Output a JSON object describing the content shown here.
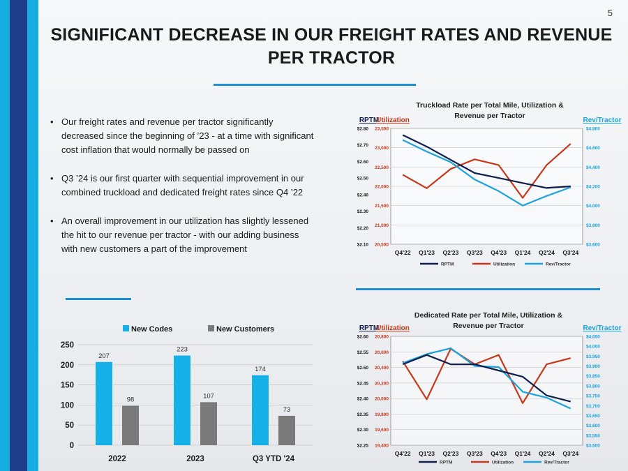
{
  "page_number": "5",
  "title": "SIGNIFICANT DECREASE IN OUR FREIGHT RATES AND REVENUE PER TRACTOR",
  "bullets": [
    "Our freight rates and revenue per tractor significantly decreased since the beginning of ’23 - at a time with significant cost inflation that would normally be passed on",
    "Q3 ’24 is our first quarter with sequential improvement in our combined truckload and dedicated freight rates since Q4 ’22",
    "An overall improvement in our utilization has slightly lessened the hit to our revenue per tractor - with our adding business with new customers a part of the improvement"
  ],
  "colors": {
    "rptm": "#0e1f4d",
    "utilization": "#c8371a",
    "rev_tractor": "#1aa3dc",
    "new_codes": "#16b0e8",
    "new_customers": "#7a7a7a",
    "accent_rule": "#1a8fd6"
  },
  "chart_data": [
    {
      "type": "line",
      "title_line1": "Truckload Rate per Total Mile, Utilization &",
      "title_line2": "Revenue per Tractor",
      "left_axis_label": "RPTM",
      "middle_axis_label": "Utilization",
      "right_axis_label": "Rev/Tractor",
      "categories": [
        "Q4'22",
        "Q1'23",
        "Q2'23",
        "Q3'23",
        "Q4'23",
        "Q1'24",
        "Q2'24",
        "Q3'24"
      ],
      "rptm_ticks": [
        "$2.80",
        "$2.70",
        "$2.60",
        "$2.50",
        "$2.40",
        "$2.30",
        "$2.20",
        "$2.10"
      ],
      "utilization_ticks": [
        "23,500",
        "23,000",
        "22,500",
        "22,000",
        "21,500",
        "21,000",
        "20,500"
      ],
      "rev_ticks": [
        "$4,800",
        "$4,600",
        "$4,400",
        "$4,200",
        "$4,000",
        "$3,800",
        "$3,600"
      ],
      "ylim_rptm": [
        2.1,
        2.8
      ],
      "ylim_utilization": [
        20500,
        23500
      ],
      "ylim_rev": [
        3600,
        4800
      ],
      "legend": [
        "RPTM",
        "Utilization",
        "Rev/Tractor"
      ],
      "series": [
        {
          "name": "RPTM",
          "axis": "rptm",
          "values": [
            2.76,
            2.69,
            2.61,
            2.53,
            2.5,
            2.47,
            2.44,
            2.45
          ]
        },
        {
          "name": "Utilization",
          "axis": "utilization",
          "values": [
            22300,
            21950,
            22450,
            22700,
            22550,
            21700,
            22550,
            23100
          ]
        },
        {
          "name": "Rev/Tractor",
          "axis": "rev",
          "values": [
            4680,
            4560,
            4450,
            4270,
            4150,
            4000,
            4100,
            4190
          ]
        }
      ]
    },
    {
      "type": "line",
      "title_line1": "Dedicated Rate per Total Mile, Utilization &",
      "title_line2": "Revenue per Tractor",
      "left_axis_label": "RPTM",
      "middle_axis_label": "Utilization",
      "right_axis_label": "Rev/Tractor",
      "categories": [
        "Q4'22",
        "Q1'23",
        "Q2'23",
        "Q3'23",
        "Q4'23",
        "Q1'24",
        "Q2'24",
        "Q3'24"
      ],
      "rptm_ticks": [
        "$2.60",
        "$2.55",
        "$2.50",
        "$2.45",
        "$2.40",
        "$2.35",
        "$2.30",
        "$2.25"
      ],
      "utilization_ticks": [
        "20,800",
        "20,600",
        "20,400",
        "20,200",
        "20,000",
        "19,800",
        "19,600",
        "19,400"
      ],
      "rev_ticks": [
        "$4,050",
        "$4,000",
        "$3,950",
        "$3,900",
        "$3,850",
        "$3,800",
        "$3,750",
        "$3,700",
        "$3,650",
        "$3,600",
        "$3,550",
        "$3,500"
      ],
      "ylim_rptm": [
        2.25,
        2.6
      ],
      "ylim_utilization": [
        19400,
        20800
      ],
      "ylim_rev": [
        3500,
        4050
      ],
      "legend": [
        "RPTM",
        "Utilization",
        "Rev/Tractor"
      ],
      "series": [
        {
          "name": "RPTM",
          "axis": "rptm",
          "values": [
            2.51,
            2.54,
            2.51,
            2.51,
            2.49,
            2.47,
            2.41,
            2.39
          ]
        },
        {
          "name": "Utilization",
          "axis": "utilization",
          "values": [
            20480,
            19990,
            20640,
            20440,
            20560,
            19940,
            20440,
            20520
          ]
        },
        {
          "name": "Rev/Tractor",
          "axis": "rev",
          "values": [
            3915,
            3960,
            3990,
            3900,
            3895,
            3770,
            3740,
            3685
          ]
        }
      ]
    },
    {
      "type": "bar",
      "categories": [
        "2022",
        "2023",
        "Q3 YTD '24"
      ],
      "legend": [
        "New Codes",
        "New Customers"
      ],
      "series": [
        {
          "name": "New Codes",
          "values": [
            207,
            223,
            174
          ]
        },
        {
          "name": "New Customers",
          "values": [
            98,
            107,
            73
          ]
        }
      ],
      "ylim": [
        0,
        250
      ],
      "yticks": [
        "250",
        "200",
        "150",
        "100",
        "50",
        "0"
      ]
    }
  ]
}
